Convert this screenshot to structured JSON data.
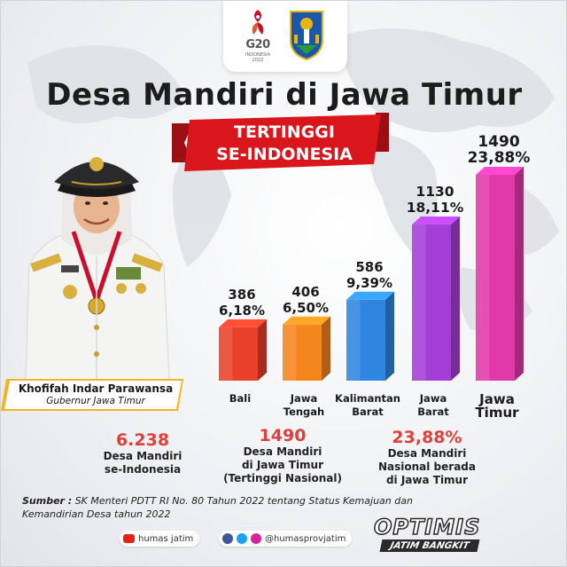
{
  "header": {
    "g20_label": "G20",
    "g20_sub_1": "INDONESIA",
    "g20_sub_2": "2022"
  },
  "title": "Desa Mandiri di Jawa Timur",
  "ribbon": {
    "line1": "TERTINGGI",
    "line2": "SE-INDONESIA",
    "color": "#d8161c"
  },
  "person": {
    "name": "Khofifah Indar Parawansa",
    "role": "Gubernur Jawa Timur"
  },
  "chart_data": {
    "type": "bar",
    "categories": [
      "Bali",
      "Jawa Tengah",
      "Kalimantan Barat",
      "Jawa Barat",
      "Jawa Timur"
    ],
    "category_lines": [
      [
        "Bali"
      ],
      [
        "Jawa",
        "Tengah"
      ],
      [
        "Kalimantan",
        "Barat"
      ],
      [
        "Jawa",
        "Barat"
      ],
      [
        "Jawa",
        "Timur"
      ]
    ],
    "values": [
      386,
      406,
      586,
      1130,
      1490
    ],
    "percent_labels": [
      "6,18%",
      "6,50%",
      "9,39%",
      "18,11%",
      "23,88%"
    ],
    "value_labels": [
      "386",
      "406",
      "586",
      "1130",
      "1490"
    ],
    "colors": [
      "#e8402a",
      "#f5861e",
      "#2f86e0",
      "#a33fd6",
      "#e03aa8"
    ],
    "title": "",
    "xlabel": "",
    "ylabel": ""
  },
  "stats": [
    {
      "value": "6.238",
      "lines": [
        "Desa Mandiri",
        "se-Indonesia"
      ]
    },
    {
      "value": "1490",
      "lines": [
        "Desa Mandiri",
        "di Jawa Timur",
        "(Tertinggi Nasional)"
      ]
    },
    {
      "value": "23,88%",
      "lines": [
        "Desa Mandiri",
        "Nasional berada",
        "di Jawa Timur"
      ]
    }
  ],
  "source": {
    "label": "Sumber :",
    "text": "SK Menteri PDTT RI No. 80 Tahun 2022 tentang Status Kemajuan dan Kemandirian Desa tahun 2022"
  },
  "social": {
    "youtube": "humas jatim",
    "handle": "@humasprovjatim"
  },
  "tagline": {
    "main": "OPTIMIS",
    "sub": "JATIM BANGKIT"
  }
}
